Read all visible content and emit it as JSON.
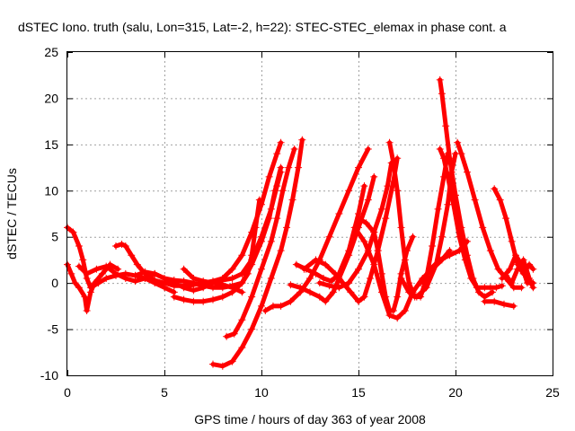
{
  "chart_data": {
    "type": "scatter",
    "title": "dSTEC Iono. truth (salu, Lon=315, Lat=-2, h=22): STEC-STEC_elemax in phase cont. a",
    "xlabel": "GPS time / hours of day 363 of year 2008",
    "ylabel": "dSTEC  / TECUs",
    "xlim": [
      0,
      25
    ],
    "ylim": [
      -10,
      25
    ],
    "xticks": [
      0,
      5,
      10,
      15,
      20,
      25
    ],
    "yticks": [
      -10,
      -5,
      0,
      5,
      10,
      15,
      20,
      25
    ],
    "xtick_labels": [
      "0",
      "5",
      "10",
      "15",
      "20",
      "25"
    ],
    "ytick_labels": [
      "-10",
      "-5",
      "0",
      "5",
      "10",
      "15",
      "20",
      "25"
    ],
    "grid": true,
    "marker": "+",
    "color": "#ff0000",
    "series": [
      {
        "values": [
          [
            0.0,
            6.0
          ],
          [
            0.3,
            5.5
          ],
          [
            0.6,
            4.0
          ],
          [
            0.8,
            2.5
          ],
          [
            1.0,
            0.5
          ],
          [
            1.2,
            -0.5
          ],
          [
            1.6,
            0.0
          ],
          [
            2.0,
            0.5
          ],
          [
            2.5,
            0.8
          ],
          [
            3.0,
            1.0
          ],
          [
            3.5,
            0.8
          ],
          [
            4.0,
            0.5
          ],
          [
            4.5,
            0.0
          ],
          [
            5.0,
            -0.5
          ],
          [
            5.5,
            -1.0
          ]
        ]
      },
      {
        "values": [
          [
            0.0,
            2.0
          ],
          [
            0.2,
            1.0
          ],
          [
            0.4,
            0.0
          ],
          [
            0.6,
            -0.5
          ],
          [
            0.9,
            -1.5
          ],
          [
            1.0,
            -3.0
          ],
          [
            1.2,
            -1.0
          ],
          [
            1.4,
            0.0
          ],
          [
            1.8,
            1.0
          ],
          [
            2.2,
            2.0
          ],
          [
            2.6,
            1.5
          ]
        ]
      },
      {
        "values": [
          [
            0.6,
            1.8
          ],
          [
            1.0,
            1.0
          ],
          [
            1.5,
            1.5
          ],
          [
            2.0,
            1.8
          ],
          [
            2.5,
            1.0
          ],
          [
            3.0,
            0.5
          ],
          [
            3.5,
            0.2
          ],
          [
            4.0,
            0.5
          ],
          [
            4.5,
            1.0
          ],
          [
            5.0,
            0.5
          ],
          [
            5.5,
            0.3
          ],
          [
            6.0,
            0.2
          ],
          [
            6.5,
            0.0
          ],
          [
            7.0,
            -0.3
          ],
          [
            7.5,
            -0.5
          ],
          [
            8.0,
            -0.5
          ],
          [
            8.5,
            -0.3
          ],
          [
            9.0,
            0.0
          ],
          [
            9.3,
            1.0
          ],
          [
            9.5,
            3.0
          ],
          [
            9.7,
            6.0
          ],
          [
            9.9,
            9.0
          ]
        ]
      },
      {
        "values": [
          [
            2.5,
            4.0
          ],
          [
            2.8,
            4.2
          ],
          [
            3.0,
            4.0
          ],
          [
            3.3,
            3.0
          ],
          [
            3.6,
            2.0
          ],
          [
            4.0,
            1.0
          ],
          [
            4.5,
            0.3
          ],
          [
            5.0,
            0.0
          ],
          [
            5.5,
            -0.3
          ],
          [
            6.0,
            -0.3
          ],
          [
            6.5,
            -0.2
          ],
          [
            7.0,
            0.0
          ],
          [
            7.5,
            0.2
          ],
          [
            8.0,
            0.5
          ],
          [
            8.5,
            1.5
          ],
          [
            9.0,
            3.0
          ],
          [
            9.5,
            5.5
          ],
          [
            10.0,
            8.5
          ],
          [
            10.4,
            11.5
          ],
          [
            10.8,
            14.0
          ],
          [
            11.0,
            15.2
          ]
        ]
      },
      {
        "values": [
          [
            3.5,
            0.8
          ],
          [
            4.0,
            1.2
          ],
          [
            4.5,
            1.0
          ],
          [
            5.0,
            0.5
          ],
          [
            5.5,
            0.0
          ],
          [
            6.0,
            -0.5
          ],
          [
            6.5,
            -0.8
          ],
          [
            7.0,
            -0.5
          ],
          [
            7.5,
            0.0
          ],
          [
            8.0,
            0.3
          ],
          [
            8.5,
            0.5
          ],
          [
            9.0,
            1.0
          ],
          [
            9.5,
            2.5
          ],
          [
            10.0,
            5.0
          ],
          [
            10.5,
            8.0
          ],
          [
            10.8,
            10.5
          ],
          [
            11.0,
            12.0
          ]
        ]
      },
      {
        "values": [
          [
            5.5,
            -1.5
          ],
          [
            6.0,
            -1.8
          ],
          [
            6.5,
            -2.0
          ],
          [
            7.0,
            -2.0
          ],
          [
            7.5,
            -1.8
          ],
          [
            8.0,
            -1.5
          ],
          [
            8.5,
            -1.0
          ],
          [
            9.0,
            0.0
          ],
          [
            9.5,
            2.0
          ],
          [
            10.0,
            4.5
          ],
          [
            10.4,
            7.0
          ],
          [
            10.7,
            10.0
          ],
          [
            11.0,
            12.5
          ]
        ]
      },
      {
        "values": [
          [
            6.0,
            1.5
          ],
          [
            6.5,
            0.5
          ],
          [
            7.0,
            0.2
          ],
          [
            7.5,
            0.0
          ],
          [
            8.0,
            -0.2
          ],
          [
            8.5,
            -0.5
          ],
          [
            9.0,
            -1.0
          ]
        ]
      },
      {
        "values": [
          [
            7.5,
            -8.8
          ],
          [
            8.0,
            -9.0
          ],
          [
            8.5,
            -8.5
          ],
          [
            9.0,
            -7.0
          ],
          [
            9.5,
            -5.0
          ],
          [
            10.0,
            -2.5
          ],
          [
            10.5,
            0.5
          ],
          [
            11.0,
            3.5
          ],
          [
            11.3,
            6.0
          ],
          [
            11.6,
            9.0
          ],
          [
            11.9,
            12.5
          ],
          [
            12.1,
            15.5
          ]
        ]
      },
      {
        "values": [
          [
            8.2,
            -5.8
          ],
          [
            8.6,
            -5.5
          ],
          [
            9.0,
            -4.0
          ],
          [
            9.5,
            -1.5
          ],
          [
            10.0,
            1.5
          ],
          [
            10.5,
            4.5
          ],
          [
            10.8,
            7.0
          ],
          [
            11.1,
            10.0
          ],
          [
            11.4,
            12.5
          ],
          [
            11.7,
            14.5
          ]
        ]
      },
      {
        "values": [
          [
            10.2,
            -3.0
          ],
          [
            10.6,
            -2.5
          ],
          [
            11.0,
            -2.5
          ],
          [
            11.5,
            -2.0
          ],
          [
            12.0,
            -1.0
          ],
          [
            12.5,
            0.5
          ],
          [
            13.0,
            2.5
          ],
          [
            13.5,
            5.0
          ],
          [
            14.0,
            7.5
          ],
          [
            14.5,
            10.0
          ],
          [
            15.0,
            12.5
          ],
          [
            15.5,
            14.5
          ]
        ]
      },
      {
        "values": [
          [
            11.5,
            -0.2
          ],
          [
            12.0,
            -0.5
          ],
          [
            12.5,
            -1.0
          ],
          [
            13.0,
            -1.5
          ],
          [
            13.3,
            -2.0
          ],
          [
            13.7,
            -1.0
          ],
          [
            14.0,
            0.5
          ],
          [
            14.5,
            3.0
          ],
          [
            15.0,
            6.0
          ],
          [
            15.5,
            9.0
          ],
          [
            15.8,
            11.5
          ]
        ]
      },
      {
        "values": [
          [
            11.8,
            2.0
          ],
          [
            12.3,
            1.5
          ],
          [
            12.8,
            1.0
          ],
          [
            13.2,
            0.5
          ],
          [
            13.6,
            0.2
          ],
          [
            14.0,
            1.0
          ],
          [
            14.5,
            3.5
          ],
          [
            15.0,
            7.5
          ],
          [
            15.3,
            10.5
          ]
        ]
      },
      {
        "values": [
          [
            12.2,
            1.5
          ],
          [
            12.8,
            2.5
          ],
          [
            13.3,
            2.0
          ],
          [
            13.8,
            1.0
          ],
          [
            14.2,
            0.0
          ],
          [
            14.6,
            -1.0
          ],
          [
            15.0,
            -2.0
          ],
          [
            15.3,
            -1.5
          ],
          [
            15.6,
            0.5
          ],
          [
            16.0,
            3.5
          ],
          [
            16.4,
            7.0
          ],
          [
            16.8,
            11.0
          ],
          [
            17.0,
            13.5
          ]
        ]
      },
      {
        "values": [
          [
            13.0,
            0.0
          ],
          [
            13.5,
            -0.3
          ],
          [
            14.0,
            -0.5
          ],
          [
            14.5,
            0.0
          ],
          [
            15.0,
            1.5
          ],
          [
            15.5,
            3.5
          ],
          [
            15.8,
            5.5
          ],
          [
            16.2,
            8.0
          ],
          [
            16.5,
            10.5
          ],
          [
            16.7,
            13.0
          ]
        ]
      },
      {
        "values": [
          [
            15.0,
            7.0
          ],
          [
            15.4,
            6.5
          ],
          [
            15.8,
            5.5
          ],
          [
            16.0,
            3.5
          ],
          [
            16.2,
            1.0
          ],
          [
            16.4,
            -1.5
          ],
          [
            16.6,
            -3.0
          ],
          [
            16.8,
            -3.0
          ],
          [
            17.0,
            -1.5
          ],
          [
            17.2,
            1.0
          ],
          [
            17.5,
            3.5
          ],
          [
            17.8,
            5.0
          ]
        ]
      },
      {
        "values": [
          [
            14.8,
            6.0
          ],
          [
            15.3,
            4.5
          ],
          [
            15.8,
            2.0
          ],
          [
            16.2,
            -1.0
          ],
          [
            16.6,
            -3.5
          ],
          [
            17.0,
            -3.8
          ],
          [
            17.4,
            -3.0
          ],
          [
            17.8,
            -1.0
          ],
          [
            18.3,
            0.5
          ],
          [
            18.8,
            1.5
          ],
          [
            19.3,
            2.5
          ],
          [
            19.7,
            3.5
          ]
        ]
      },
      {
        "values": [
          [
            16.6,
            15.2
          ],
          [
            16.8,
            13.0
          ],
          [
            17.0,
            10.0
          ],
          [
            17.2,
            6.0
          ],
          [
            17.4,
            2.5
          ],
          [
            17.6,
            0.0
          ],
          [
            17.9,
            -1.5
          ],
          [
            18.2,
            -1.5
          ],
          [
            18.5,
            0.5
          ],
          [
            18.8,
            4.0
          ],
          [
            19.1,
            8.0
          ],
          [
            19.4,
            11.5
          ],
          [
            19.6,
            14.0
          ]
        ]
      },
      {
        "values": [
          [
            17.2,
            0.5
          ],
          [
            17.6,
            -1.0
          ],
          [
            18.0,
            -1.5
          ],
          [
            18.5,
            -0.5
          ],
          [
            19.0,
            2.0
          ],
          [
            19.3,
            5.0
          ],
          [
            19.6,
            8.5
          ],
          [
            19.8,
            12.0
          ],
          [
            20.0,
            14.0
          ]
        ]
      },
      {
        "values": [
          [
            19.2,
            22.0
          ],
          [
            19.3,
            20.5
          ],
          [
            19.5,
            17.0
          ],
          [
            19.7,
            13.5
          ],
          [
            20.0,
            9.5
          ],
          [
            20.3,
            6.0
          ],
          [
            20.6,
            3.0
          ],
          [
            20.9,
            0.5
          ],
          [
            21.2,
            -1.0
          ],
          [
            21.5,
            -1.5
          ],
          [
            21.9,
            -1.0
          ]
        ]
      },
      {
        "values": [
          [
            19.2,
            14.5
          ],
          [
            19.4,
            13.5
          ],
          [
            19.6,
            11.5
          ],
          [
            19.9,
            8.5
          ],
          [
            20.2,
            5.0
          ],
          [
            20.5,
            2.5
          ],
          [
            20.8,
            0.5
          ],
          [
            21.1,
            -0.5
          ],
          [
            21.5,
            -0.5
          ],
          [
            21.8,
            -0.5
          ],
          [
            22.1,
            -0.5
          ],
          [
            22.4,
            -0.3
          ]
        ]
      },
      {
        "values": [
          [
            20.1,
            15.2
          ],
          [
            20.3,
            14.0
          ],
          [
            20.6,
            12.0
          ],
          [
            21.0,
            9.0
          ],
          [
            21.4,
            6.0
          ],
          [
            21.8,
            3.5
          ],
          [
            22.2,
            1.5
          ],
          [
            22.6,
            0.5
          ],
          [
            23.0,
            -0.5
          ],
          [
            23.4,
            -0.5
          ]
        ]
      },
      {
        "values": [
          [
            18.2,
            0.0
          ],
          [
            18.7,
            1.5
          ],
          [
            19.2,
            2.5
          ],
          [
            19.7,
            3.0
          ],
          [
            20.2,
            3.5
          ],
          [
            20.6,
            4.5
          ]
        ]
      },
      {
        "values": [
          [
            22.0,
            10.2
          ],
          [
            22.3,
            9.0
          ],
          [
            22.6,
            7.0
          ],
          [
            22.9,
            4.5
          ],
          [
            23.2,
            2.0
          ],
          [
            23.5,
            1.0
          ],
          [
            23.8,
            2.0
          ],
          [
            24.0,
            1.5
          ]
        ]
      },
      {
        "values": [
          [
            21.5,
            -2.0
          ],
          [
            22.0,
            -2.0
          ],
          [
            22.5,
            -2.3
          ],
          [
            23.0,
            -2.5
          ]
        ]
      },
      {
        "values": [
          [
            22.6,
            0.8
          ],
          [
            22.9,
            0.0
          ],
          [
            23.2,
            1.5
          ],
          [
            23.5,
            2.5
          ],
          [
            23.8,
            0.5
          ],
          [
            24.0,
            -0.5
          ]
        ]
      },
      {
        "values": [
          [
            22.4,
            0.5
          ],
          [
            22.8,
            1.5
          ],
          [
            23.1,
            3.0
          ],
          [
            23.4,
            2.0
          ],
          [
            23.7,
            0.0
          ],
          [
            24.0,
            0.0
          ]
        ]
      }
    ]
  }
}
